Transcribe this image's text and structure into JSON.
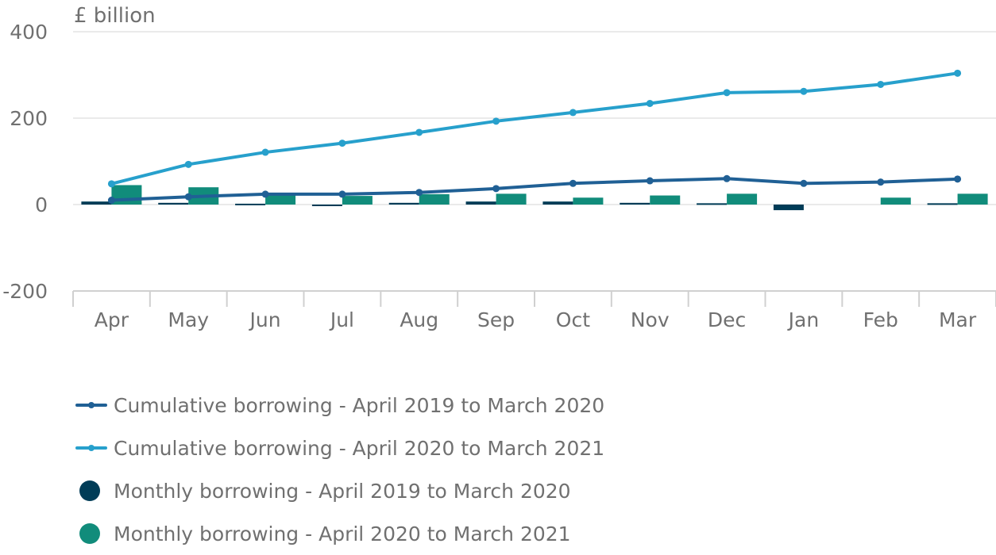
{
  "chart_data": {
    "type": "bar",
    "unit_label": "£ billion",
    "categories": [
      "Apr",
      "May",
      "Jun",
      "Jul",
      "Aug",
      "Sep",
      "Oct",
      "Nov",
      "Dec",
      "Jan",
      "Feb",
      "Mar"
    ],
    "ylim": [
      -200,
      400
    ],
    "yticks": [
      400,
      200,
      0,
      -200
    ],
    "grid": true,
    "legend_position": "bottom",
    "series": [
      {
        "name": "Cumulative borrowing - April 2019 to March 2020",
        "kind": "line",
        "color": "#206095",
        "values": [
          10,
          18,
          24,
          24,
          28,
          37,
          49,
          55,
          60,
          49,
          52,
          59
        ]
      },
      {
        "name": "Cumulative borrowing - April 2020 to March 2021",
        "kind": "line",
        "color": "#27a0cc",
        "values": [
          48,
          93,
          121,
          142,
          167,
          193,
          213,
          234,
          259,
          262,
          278,
          304
        ]
      },
      {
        "name": "Monthly borrowing - April 2019 to March 2020",
        "kind": "bar",
        "color": "#003c57",
        "values": [
          7,
          4,
          2,
          -2,
          4,
          7,
          7,
          4,
          3,
          -13,
          0,
          3
        ]
      },
      {
        "name": "Monthly borrowing - April 2020 to March 2021",
        "kind": "bar",
        "color": "#118c7b",
        "values": [
          45,
          40,
          25,
          20,
          24,
          25,
          16,
          21,
          25,
          0,
          16,
          25
        ]
      }
    ]
  }
}
